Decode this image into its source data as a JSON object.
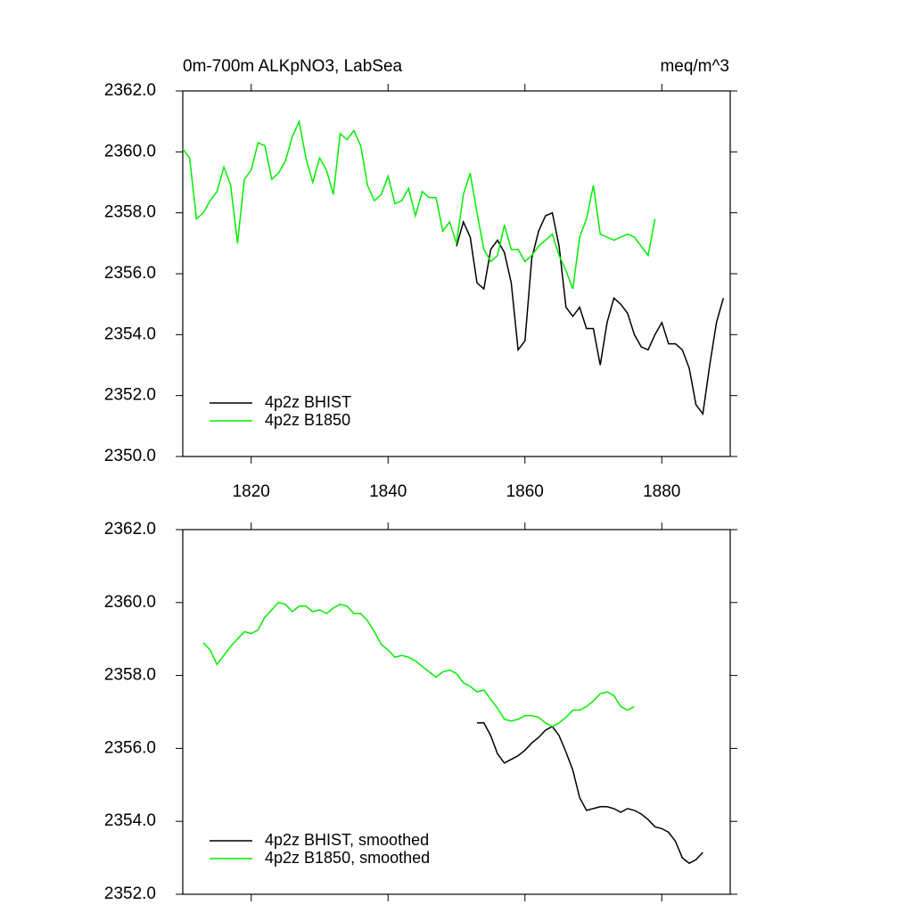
{
  "chart_data": [
    {
      "type": "line",
      "title": "0m-700m ALKpNO3, LabSea",
      "units": "meq/m^3",
      "xlim": [
        1810,
        1890
      ],
      "xticks": [
        1820,
        1840,
        1860,
        1880
      ],
      "show_xtick_labels": true,
      "ylim": [
        2350,
        2362
      ],
      "yticks": [
        {
          "value": 2350,
          "label": "2350.0"
        },
        {
          "value": 2352,
          "label": "2352.0"
        },
        {
          "value": 2354,
          "label": "2354.0"
        },
        {
          "value": 2356,
          "label": "2356.0"
        },
        {
          "value": 2358,
          "label": "2358.0"
        },
        {
          "value": 2360,
          "label": "2360.0"
        },
        {
          "value": 2362,
          "label": "2362.0"
        }
      ],
      "legend": "lower left",
      "series": [
        {
          "name": "4p2z BHIST",
          "color": "#000000",
          "x": [
            1850,
            1851,
            1852,
            1853,
            1854,
            1855,
            1856,
            1857,
            1858,
            1859,
            1860,
            1861,
            1862,
            1863,
            1864,
            1865,
            1866,
            1867,
            1868,
            1869,
            1870,
            1871,
            1872,
            1873,
            1874,
            1875,
            1876,
            1877,
            1878,
            1879,
            1880,
            1881,
            1882,
            1883,
            1884,
            1885,
            1886,
            1887,
            1888,
            1889
          ],
          "values": [
            2356.9,
            2357.7,
            2357.2,
            2355.7,
            2355.5,
            2356.8,
            2357.1,
            2356.7,
            2355.7,
            2353.5,
            2353.8,
            2356.5,
            2357.4,
            2357.9,
            2358.0,
            2356.9,
            2354.9,
            2354.6,
            2354.9,
            2354.2,
            2354.2,
            2353.0,
            2354.4,
            2355.2,
            2355.0,
            2354.7,
            2354.0,
            2353.6,
            2353.5,
            2354.0,
            2354.4,
            2353.7,
            2353.7,
            2353.5,
            2352.9,
            2351.7,
            2351.4,
            2353.0,
            2354.4,
            2355.2
          ]
        },
        {
          "name": "4p2z B1850",
          "color": "#00ee00",
          "x": [
            1810,
            1811,
            1812,
            1813,
            1814,
            1815,
            1816,
            1817,
            1818,
            1819,
            1820,
            1821,
            1822,
            1823,
            1824,
            1825,
            1826,
            1827,
            1828,
            1829,
            1830,
            1831,
            1832,
            1833,
            1834,
            1835,
            1836,
            1837,
            1838,
            1839,
            1840,
            1841,
            1842,
            1843,
            1844,
            1845,
            1846,
            1847,
            1848,
            1849,
            1850,
            1851,
            1852,
            1853,
            1854,
            1855,
            1856,
            1857,
            1858,
            1859,
            1860,
            1861,
            1862,
            1863,
            1864,
            1865,
            1866,
            1867,
            1868,
            1869,
            1870,
            1871,
            1872,
            1873,
            1874,
            1875,
            1876,
            1877,
            1878,
            1879
          ],
          "values": [
            2360.1,
            2359.8,
            2357.8,
            2358.0,
            2358.4,
            2358.7,
            2359.5,
            2358.9,
            2357.0,
            2359.1,
            2359.4,
            2360.3,
            2360.2,
            2359.1,
            2359.3,
            2359.7,
            2360.5,
            2361.0,
            2359.8,
            2359.0,
            2359.8,
            2359.4,
            2358.6,
            2360.6,
            2360.4,
            2360.7,
            2360.2,
            2358.9,
            2358.4,
            2358.6,
            2359.2,
            2358.3,
            2358.4,
            2358.8,
            2357.9,
            2358.7,
            2358.5,
            2358.5,
            2357.4,
            2357.7,
            2357.0,
            2358.6,
            2359.3,
            2358.0,
            2356.8,
            2356.4,
            2356.6,
            2357.6,
            2356.8,
            2356.8,
            2356.4,
            2356.6,
            2356.9,
            2357.1,
            2357.3,
            2356.6,
            2356.1,
            2355.5,
            2357.2,
            2357.8,
            2358.9,
            2357.3,
            2357.2,
            2357.1,
            2357.2,
            2357.3,
            2357.2,
            2356.9,
            2356.6,
            2357.8
          ]
        }
      ]
    },
    {
      "type": "line",
      "xlim": [
        1810,
        1890
      ],
      "xticks": [
        1820,
        1840,
        1860,
        1880
      ],
      "show_xtick_labels": false,
      "ylim": [
        2352,
        2362
      ],
      "yticks": [
        {
          "value": 2352,
          "label": "2352.0"
        },
        {
          "value": 2354,
          "label": "2354.0"
        },
        {
          "value": 2356,
          "label": "2356.0"
        },
        {
          "value": 2358,
          "label": "2358.0"
        },
        {
          "value": 2360,
          "label": "2360.0"
        },
        {
          "value": 2362,
          "label": "2362.0"
        }
      ],
      "legend": "lower left",
      "series": [
        {
          "name": "4p2z BHIST, smoothed",
          "color": "#000000",
          "x": [
            1853,
            1854,
            1855,
            1856,
            1857,
            1858,
            1859,
            1860,
            1861,
            1862,
            1863,
            1864,
            1865,
            1866,
            1867,
            1868,
            1869,
            1870,
            1871,
            1872,
            1873,
            1874,
            1875,
            1876,
            1877,
            1878,
            1879,
            1880,
            1881,
            1882,
            1883,
            1884,
            1885,
            1886
          ],
          "values": [
            2356.7,
            2356.7,
            2356.35,
            2355.85,
            2355.6,
            2355.7,
            2355.8,
            2355.95,
            2356.15,
            2356.3,
            2356.5,
            2356.6,
            2356.35,
            2355.9,
            2355.4,
            2354.65,
            2354.3,
            2354.35,
            2354.4,
            2354.4,
            2354.35,
            2354.25,
            2354.35,
            2354.3,
            2354.2,
            2354.05,
            2353.85,
            2353.8,
            2353.7,
            2353.45,
            2353.0,
            2352.85,
            2352.95,
            2353.15
          ]
        },
        {
          "name": "4p2z B1850, smoothed",
          "color": "#00ee00",
          "x": [
            1813,
            1814,
            1815,
            1816,
            1817,
            1818,
            1819,
            1820,
            1821,
            1822,
            1823,
            1824,
            1825,
            1826,
            1827,
            1828,
            1829,
            1830,
            1831,
            1832,
            1833,
            1834,
            1835,
            1836,
            1837,
            1838,
            1839,
            1840,
            1841,
            1842,
            1843,
            1844,
            1845,
            1846,
            1847,
            1848,
            1849,
            1850,
            1851,
            1852,
            1853,
            1854,
            1855,
            1856,
            1857,
            1858,
            1859,
            1860,
            1861,
            1862,
            1863,
            1864,
            1865,
            1866,
            1867,
            1868,
            1869,
            1870,
            1871,
            1872,
            1873,
            1874,
            1875,
            1876
          ],
          "values": [
            2358.9,
            2358.7,
            2358.3,
            2358.55,
            2358.8,
            2359.0,
            2359.2,
            2359.15,
            2359.25,
            2359.6,
            2359.8,
            2360.0,
            2359.95,
            2359.75,
            2359.9,
            2359.9,
            2359.75,
            2359.8,
            2359.7,
            2359.85,
            2359.95,
            2359.9,
            2359.7,
            2359.7,
            2359.5,
            2359.2,
            2358.85,
            2358.7,
            2358.5,
            2358.55,
            2358.5,
            2358.4,
            2358.25,
            2358.1,
            2357.95,
            2358.1,
            2358.15,
            2358.05,
            2357.8,
            2357.7,
            2357.55,
            2357.6,
            2357.35,
            2357.1,
            2356.8,
            2356.75,
            2356.8,
            2356.9,
            2356.9,
            2356.85,
            2356.7,
            2356.6,
            2356.7,
            2356.85,
            2357.05,
            2357.05,
            2357.15,
            2357.3,
            2357.5,
            2357.55,
            2357.45,
            2357.15,
            2357.05,
            2357.15
          ]
        }
      ]
    }
  ]
}
